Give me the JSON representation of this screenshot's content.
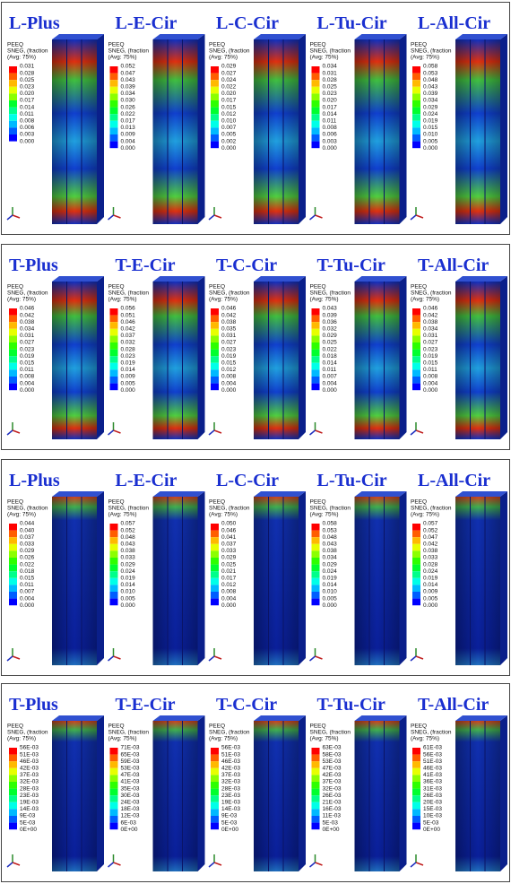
{
  "panels": [
    {
      "items": [
        {
          "title": "L-Plus",
          "legend": {
            "variable": "PEEQ",
            "sub": "SNEG, (fraction",
            "avg": "(Avg: 75%)",
            "values": [
              "0.031",
              "0.028",
              "0.025",
              "0.023",
              "0.020",
              "0.017",
              "0.014",
              "0.011",
              "0.008",
              "0.006",
              "0.003",
              "0.000"
            ]
          }
        },
        {
          "title": "L-E-Cir",
          "legend": {
            "variable": "PEEQ",
            "sub": "SNEG, (fraction",
            "avg": "(Avg: 75%)",
            "values": [
              "0.052",
              "0.047",
              "0.043",
              "0.039",
              "0.034",
              "0.030",
              "0.026",
              "0.022",
              "0.017",
              "0.013",
              "0.009",
              "0.004",
              "0.000"
            ]
          }
        },
        {
          "title": "L-C-Cir",
          "legend": {
            "variable": "PEEQ",
            "sub": "SNEG, (fraction",
            "avg": "(Avg: 75%)",
            "values": [
              "0.029",
              "0.027",
              "0.024",
              "0.022",
              "0.020",
              "0.017",
              "0.015",
              "0.012",
              "0.010",
              "0.007",
              "0.005",
              "0.002",
              "0.000"
            ]
          }
        },
        {
          "title": "L-Tu-Cir",
          "legend": {
            "variable": "PEEQ",
            "sub": "SNEG, (fraction",
            "avg": "(Avg: 75%)",
            "values": [
              "0.034",
              "0.031",
              "0.028",
              "0.025",
              "0.023",
              "0.020",
              "0.017",
              "0.014",
              "0.011",
              "0.008",
              "0.006",
              "0.003",
              "0.000"
            ]
          }
        },
        {
          "title": "L-All-Cir",
          "legend": {
            "variable": "PEEQ",
            "sub": "SNEG, (fraction",
            "avg": "(Avg: 75%)",
            "values": [
              "0.058",
              "0.053",
              "0.048",
              "0.043",
              "0.039",
              "0.034",
              "0.029",
              "0.024",
              "0.019",
              "0.015",
              "0.010",
              "0.005",
              "0.000"
            ]
          }
        }
      ]
    },
    {
      "items": [
        {
          "title": "T-Plus",
          "legend": {
            "variable": "PEEQ",
            "sub": "SNEG, (fraction",
            "avg": "(Avg: 75%)",
            "values": [
              "0.046",
              "0.042",
              "0.038",
              "0.034",
              "0.031",
              "0.027",
              "0.023",
              "0.019",
              "0.015",
              "0.011",
              "0.008",
              "0.004",
              "0.000"
            ]
          }
        },
        {
          "title": "T-E-Cir",
          "legend": {
            "variable": "PEEQ",
            "sub": "SNEG, (fraction",
            "avg": "(Avg: 75%)",
            "values": [
              "0.056",
              "0.051",
              "0.046",
              "0.042",
              "0.037",
              "0.032",
              "0.028",
              "0.023",
              "0.019",
              "0.014",
              "0.009",
              "0.005",
              "0.000"
            ]
          }
        },
        {
          "title": "T-C-Cir",
          "legend": {
            "variable": "PEEQ",
            "sub": "SNEG, (fraction",
            "avg": "(Avg: 75%)",
            "values": [
              "0.046",
              "0.042",
              "0.038",
              "0.035",
              "0.031",
              "0.027",
              "0.023",
              "0.019",
              "0.015",
              "0.012",
              "0.008",
              "0.004",
              "0.000"
            ]
          }
        },
        {
          "title": "T-Tu-Cir",
          "legend": {
            "variable": "PEEQ",
            "sub": "SNEG, (fraction",
            "avg": "(Avg: 75%)",
            "values": [
              "0.043",
              "0.039",
              "0.036",
              "0.032",
              "0.029",
              "0.025",
              "0.022",
              "0.018",
              "0.014",
              "0.011",
              "0.007",
              "0.004",
              "0.000"
            ]
          }
        },
        {
          "title": "T-All-Cir",
          "legend": {
            "variable": "PEEQ",
            "sub": "SNEG, (fraction",
            "avg": "(Avg: 75%)",
            "values": [
              "0.046",
              "0.042",
              "0.038",
              "0.034",
              "0.031",
              "0.027",
              "0.023",
              "0.019",
              "0.015",
              "0.011",
              "0.008",
              "0.004",
              "0.000"
            ]
          }
        }
      ]
    },
    {
      "items": [
        {
          "title": "L-Plus",
          "legend": {
            "variable": "PEEQ",
            "sub": "SNEG, (fraction",
            "avg": "(Avg: 75%)",
            "values": [
              "0.044",
              "0.040",
              "0.037",
              "0.033",
              "0.029",
              "0.026",
              "0.022",
              "0.018",
              "0.015",
              "0.011",
              "0.007",
              "0.004",
              "0.000"
            ]
          }
        },
        {
          "title": "L-E-Cir",
          "legend": {
            "variable": "PEEQ",
            "sub": "SNEG, (fraction",
            "avg": "(Avg: 75%)",
            "values": [
              "0.057",
              "0.052",
              "0.048",
              "0.043",
              "0.038",
              "0.033",
              "0.029",
              "0.024",
              "0.019",
              "0.014",
              "0.010",
              "0.005",
              "0.000"
            ]
          }
        },
        {
          "title": "L-C-Cir",
          "legend": {
            "variable": "PEEQ",
            "sub": "SNEG, (fraction",
            "avg": "(Avg: 75%)",
            "values": [
              "0.050",
              "0.046",
              "0.041",
              "0.037",
              "0.033",
              "0.029",
              "0.025",
              "0.021",
              "0.017",
              "0.012",
              "0.008",
              "0.004",
              "0.000"
            ]
          }
        },
        {
          "title": "L-Tu-Cir",
          "legend": {
            "variable": "PEEQ",
            "sub": "SNEG, (fraction",
            "avg": "(Avg: 75%)",
            "values": [
              "0.058",
              "0.053",
              "0.048",
              "0.043",
              "0.038",
              "0.034",
              "0.029",
              "0.024",
              "0.019",
              "0.014",
              "0.010",
              "0.005",
              "0.000"
            ]
          }
        },
        {
          "title": "L-All-Cir",
          "legend": {
            "variable": "PEEQ",
            "sub": "SNEG, (fraction",
            "avg": "(Avg: 75%)",
            "values": [
              "0.057",
              "0.052",
              "0.047",
              "0.042",
              "0.038",
              "0.033",
              "0.028",
              "0.024",
              "0.019",
              "0.014",
              "0.009",
              "0.005",
              "0.000"
            ]
          }
        }
      ]
    },
    {
      "items": [
        {
          "title": "T-Plus",
          "legend": {
            "variable": "PEEQ",
            "sub": "SNEG, (fraction",
            "avg": "(Avg: 75%)",
            "values": [
              "56E-03",
              "51E-03",
              "46E-03",
              "42E-03",
              "37E-03",
              "32E-03",
              "28E-03",
              "23E-03",
              "19E-03",
              "14E-03",
              "9E-03",
              "5E-03",
              "0E+00"
            ]
          }
        },
        {
          "title": "T-E-Cir",
          "legend": {
            "variable": "PEEQ",
            "sub": "SNEG, (fraction",
            "avg": "(Avg: 75%)",
            "values": [
              "71E-03",
              "65E-03",
              "59E-03",
              "53E-03",
              "47E-03",
              "41E-03",
              "35E-03",
              "30E-03",
              "24E-03",
              "18E-03",
              "12E-03",
              "6E-03",
              "0E+00"
            ]
          }
        },
        {
          "title": "T-C-Cir",
          "legend": {
            "variable": "PEEQ",
            "sub": "SNEG, (fraction",
            "avg": "(Avg: 75%)",
            "values": [
              "56E-03",
              "51E-03",
              "46E-03",
              "42E-03",
              "37E-03",
              "32E-03",
              "28E-03",
              "23E-03",
              "19E-03",
              "14E-03",
              "9E-03",
              "5E-03",
              "0E+00"
            ]
          }
        },
        {
          "title": "T-Tu-Cir",
          "legend": {
            "variable": "PEEQ",
            "sub": "SNEG, (fraction",
            "avg": "(Avg: 75%)",
            "values": [
              "63E-03",
              "58E-03",
              "53E-03",
              "47E-03",
              "42E-03",
              "37E-03",
              "32E-03",
              "26E-03",
              "21E-03",
              "16E-03",
              "11E-03",
              "5E-03",
              "0E+00"
            ]
          }
        },
        {
          "title": "T-All-Cir",
          "legend": {
            "variable": "PEEQ",
            "sub": "SNEG, (fraction",
            "avg": "(Avg: 75%)",
            "values": [
              "61E-03",
              "56E-03",
              "51E-03",
              "46E-03",
              "41E-03",
              "36E-03",
              "31E-03",
              "26E-03",
              "20E-03",
              "15E-03",
              "10E-03",
              "5E-03",
              "0E+00"
            ]
          }
        }
      ]
    }
  ]
}
